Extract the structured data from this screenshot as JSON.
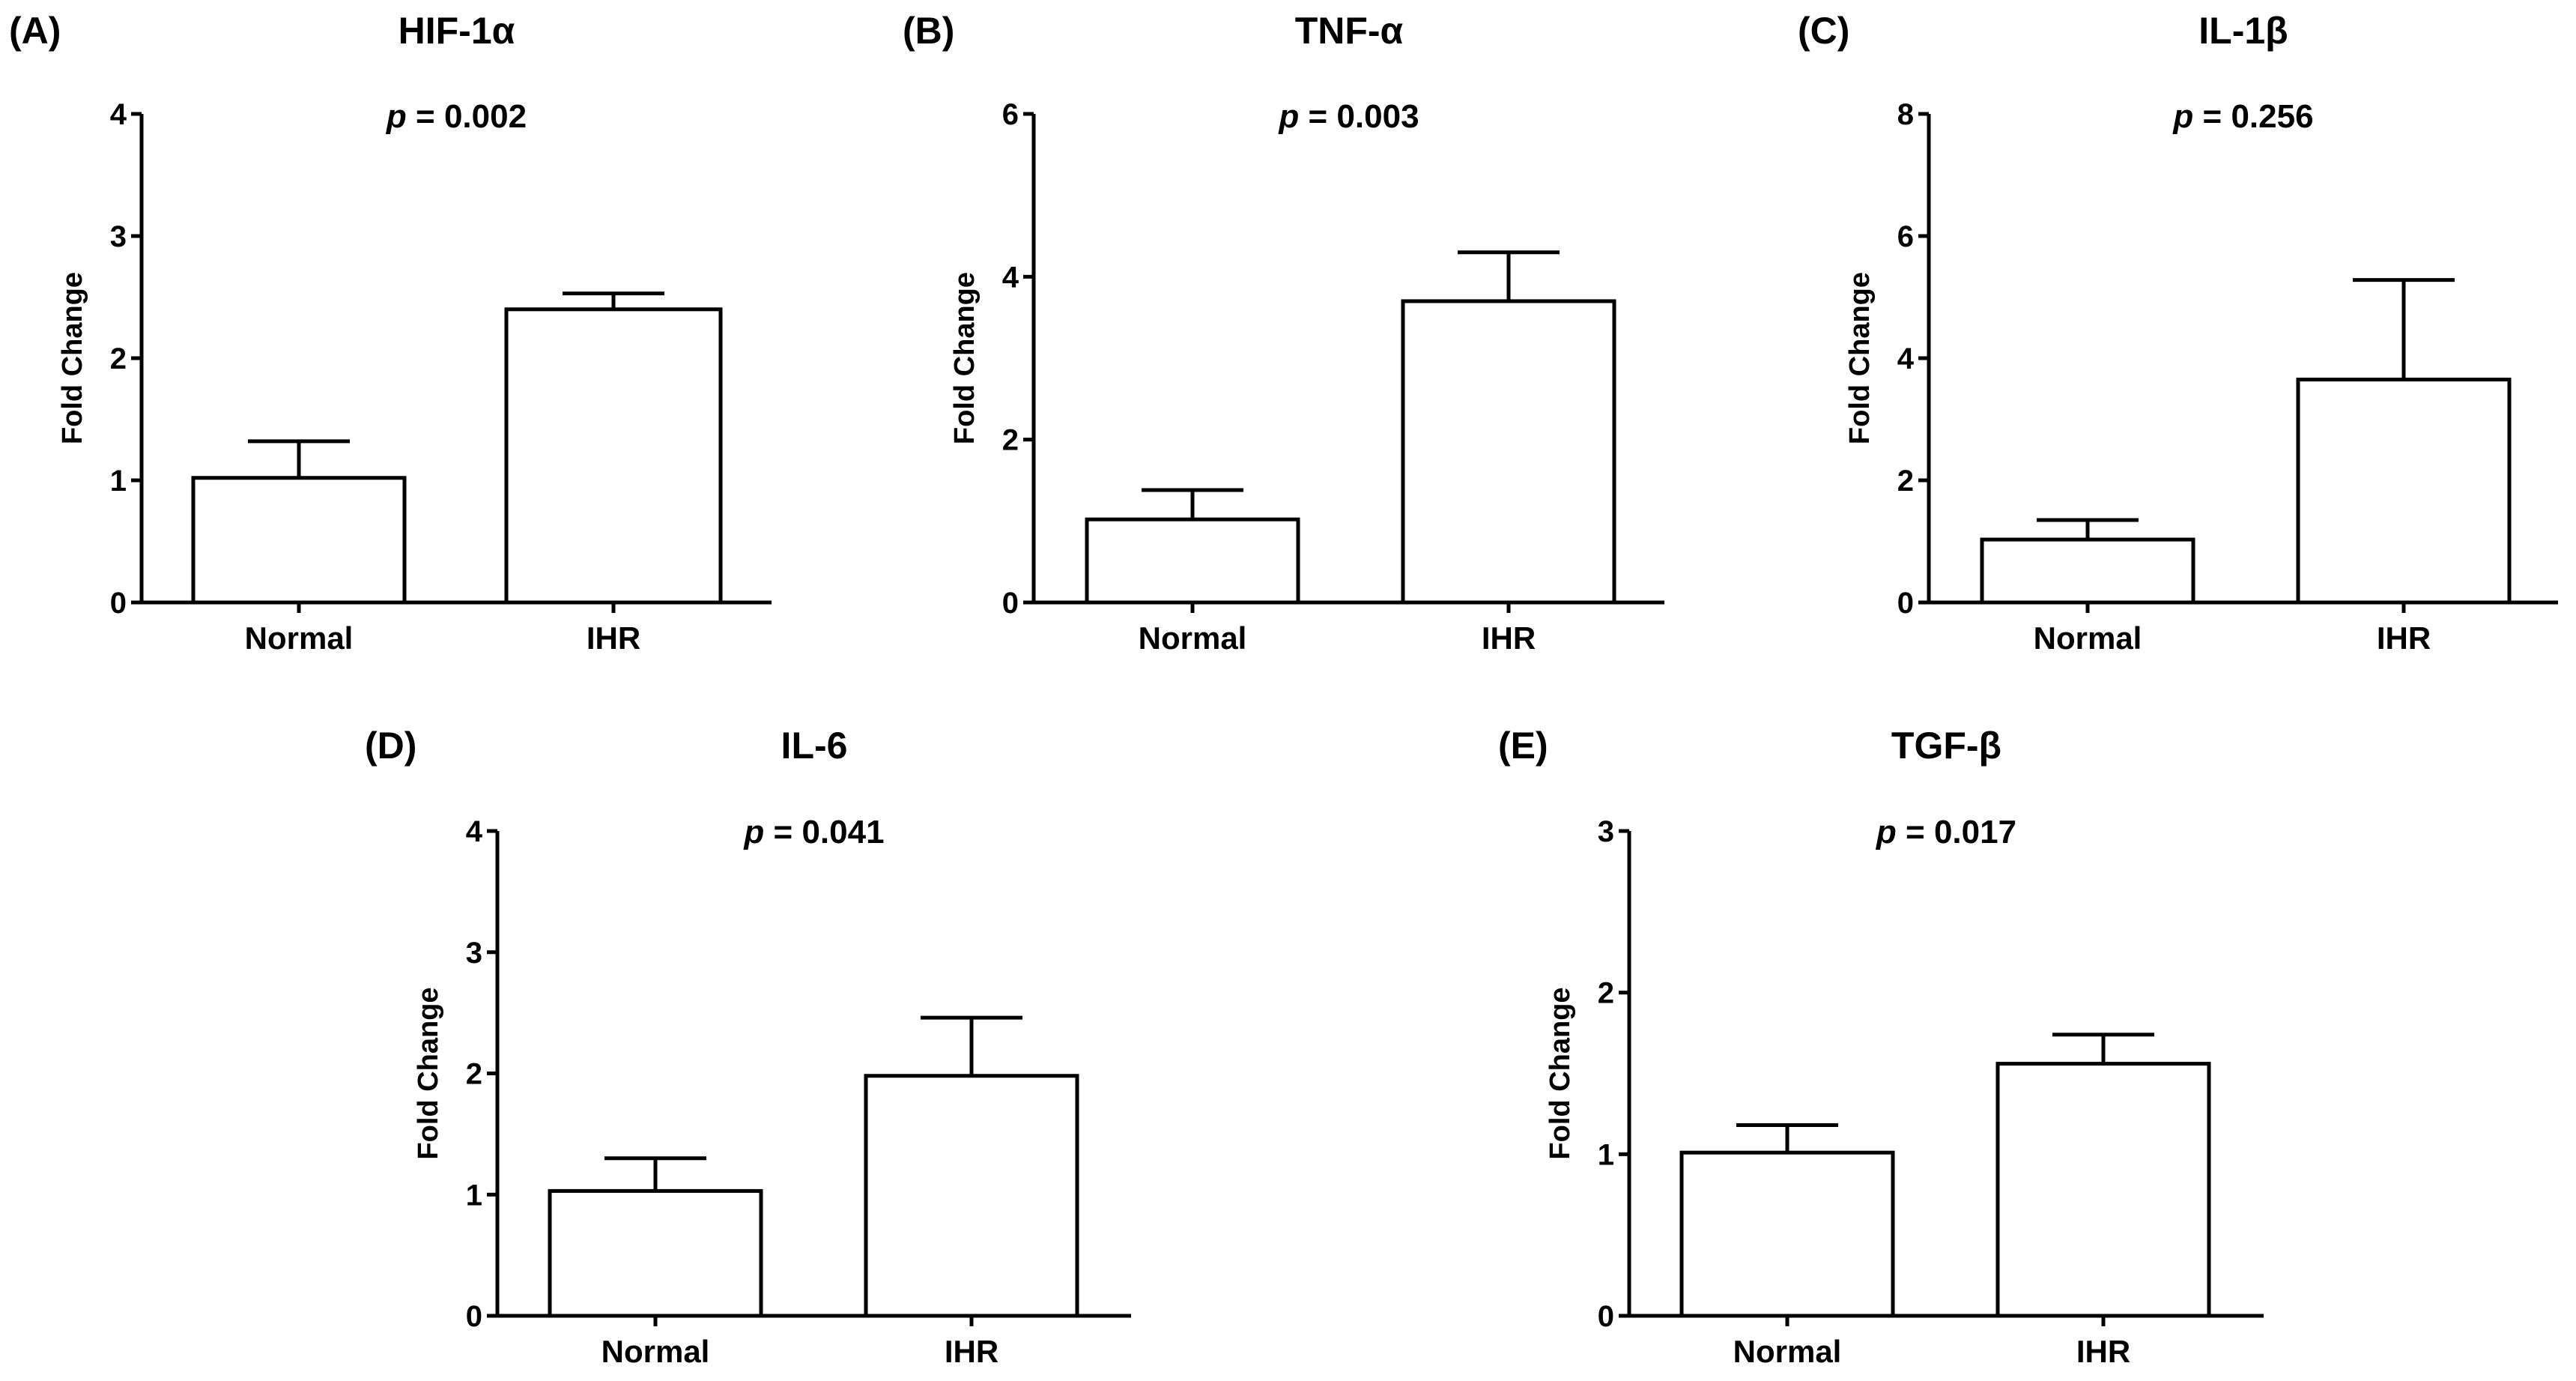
{
  "chart_data": [
    {
      "panel": "(A)",
      "type": "bar",
      "title": "HIF-1α",
      "p_label": "p",
      "p_text": " = 0.002",
      "ylabel": "Fold Change",
      "xlabel": "",
      "categories": [
        "Normal",
        "IHR"
      ],
      "values": [
        1.02,
        2.4
      ],
      "errors": [
        0.3,
        0.13
      ],
      "ylim": [
        0,
        4
      ],
      "yticks": [
        0,
        1,
        2,
        3,
        4
      ]
    },
    {
      "panel": "(B)",
      "type": "bar",
      "title": "TNF-α",
      "p_label": "p",
      "p_text": " = 0.003",
      "ylabel": "Fold Change",
      "xlabel": "",
      "categories": [
        "Normal",
        "IHR"
      ],
      "values": [
        1.02,
        3.7
      ],
      "errors": [
        0.36,
        0.6
      ],
      "ylim": [
        0,
        6
      ],
      "yticks": [
        0,
        2,
        4,
        6
      ]
    },
    {
      "panel": "(C)",
      "type": "bar",
      "title": "IL-1β",
      "p_label": "p",
      "p_text": " = 0.256",
      "ylabel": "Fold Change",
      "xlabel": "",
      "categories": [
        "Normal",
        "IHR"
      ],
      "values": [
        1.03,
        3.65
      ],
      "errors": [
        0.32,
        1.63
      ],
      "ylim": [
        0,
        8
      ],
      "yticks": [
        0,
        2,
        4,
        6,
        8
      ]
    },
    {
      "panel": "(D)",
      "type": "bar",
      "title": "IL-6",
      "p_label": "p",
      "p_text": " = 0.041",
      "ylabel": "Fold Change",
      "xlabel": "",
      "categories": [
        "Normal",
        "IHR"
      ],
      "values": [
        1.03,
        1.98
      ],
      "errors": [
        0.27,
        0.48
      ],
      "ylim": [
        0,
        4
      ],
      "yticks": [
        0,
        1,
        2,
        3,
        4
      ]
    },
    {
      "panel": "(E)",
      "type": "bar",
      "title": "TGF-β",
      "p_label": "p",
      "p_text": " = 0.017",
      "ylabel": "Fold Change",
      "xlabel": "",
      "categories": [
        "Normal",
        "IHR"
      ],
      "values": [
        1.01,
        1.56
      ],
      "errors": [
        0.17,
        0.18
      ],
      "ylim": [
        0,
        3
      ],
      "yticks": [
        0,
        1,
        2,
        3
      ]
    }
  ],
  "colors": {
    "bar_fill": "#ffffff",
    "stroke": "#000000",
    "text": "#000000"
  }
}
